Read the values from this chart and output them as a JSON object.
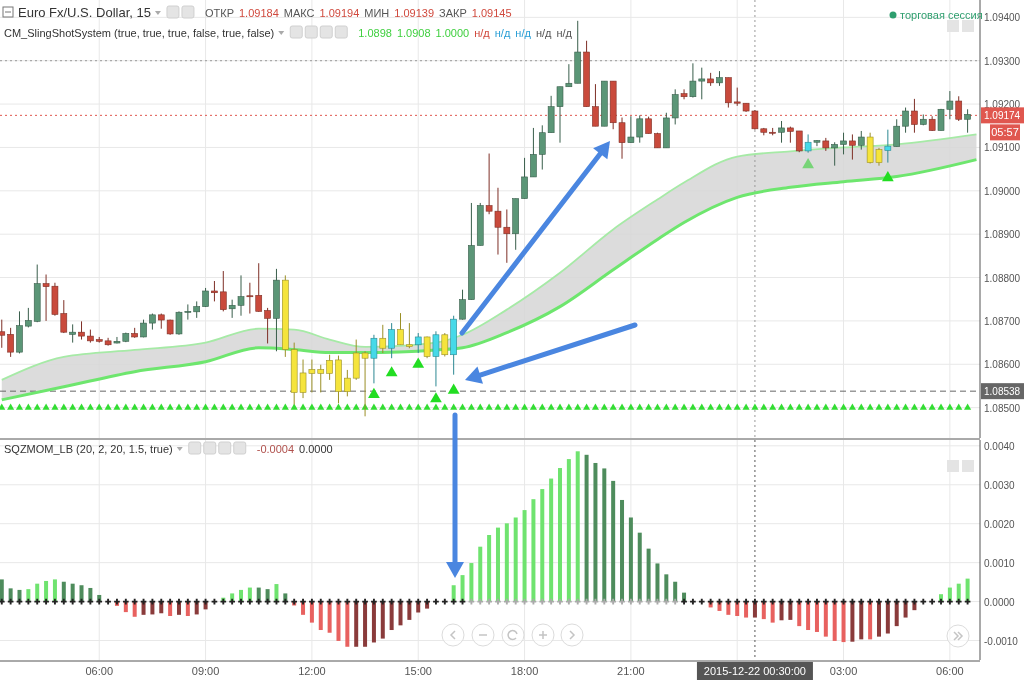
{
  "chart_data": [
    {
      "type": "candlestick",
      "title": "Euro Fx/U.S. Dollar, 15",
      "annotations": [
        "ОТКР",
        "1.09184",
        "МАКС",
        "1.09194",
        "МИН",
        "1.09139",
        "ЗАКР",
        "1.09145",
        "CM_SlingShotSystem (true, true, true, false, true, false)",
        "1.0898",
        "1.0908",
        "1.0000",
        "н/д",
        "н/д",
        "н/д",
        "н/д",
        "н/д",
        "торговая сессия",
        "05:57"
      ],
      "x": [
        "2015-12-21T03:15",
        "2015-12-21T03:30",
        "2015-12-21T03:45",
        "2015-12-21T04:00",
        "2015-12-21T04:15",
        "2015-12-21T04:30",
        "2015-12-21T04:45",
        "2015-12-21T05:00",
        "2015-12-21T05:15",
        "2015-12-21T05:30",
        "2015-12-21T05:45",
        "2015-12-21T06:00",
        "2015-12-21T06:15",
        "2015-12-21T06:30",
        "2015-12-21T06:45",
        "2015-12-21T07:00",
        "2015-12-21T07:15",
        "2015-12-21T07:30",
        "2015-12-21T07:45",
        "2015-12-21T08:00",
        "2015-12-21T08:15",
        "2015-12-21T08:30",
        "2015-12-21T08:45",
        "2015-12-21T09:00",
        "2015-12-21T09:15",
        "2015-12-21T09:30",
        "2015-12-21T09:45",
        "2015-12-21T10:00",
        "2015-12-21T10:15",
        "2015-12-21T10:30",
        "2015-12-21T10:45",
        "2015-12-21T11:00",
        "2015-12-21T11:15",
        "2015-12-21T11:30",
        "2015-12-21T11:45",
        "2015-12-21T12:00",
        "2015-12-21T12:15",
        "2015-12-21T12:30",
        "2015-12-21T12:45",
        "2015-12-21T13:00",
        "2015-12-21T13:15",
        "2015-12-21T13:30",
        "2015-12-21T13:45",
        "2015-12-21T14:00",
        "2015-12-21T14:15",
        "2015-12-21T14:30",
        "2015-12-21T14:45",
        "2015-12-21T15:00",
        "2015-12-21T15:15",
        "2015-12-21T15:30",
        "2015-12-21T15:45",
        "2015-12-21T16:00",
        "2015-12-21T16:15",
        "2015-12-21T16:30",
        "2015-12-21T16:45",
        "2015-12-21T17:00",
        "2015-12-21T17:15",
        "2015-12-21T17:30",
        "2015-12-21T17:45",
        "2015-12-21T18:00",
        "2015-12-21T18:15",
        "2015-12-21T18:30",
        "2015-12-21T18:45",
        "2015-12-21T19:00",
        "2015-12-21T19:15",
        "2015-12-21T19:30",
        "2015-12-21T19:45",
        "2015-12-21T20:00",
        "2015-12-21T20:15",
        "2015-12-21T20:30",
        "2015-12-21T20:45",
        "2015-12-21T21:00",
        "2015-12-21T21:15",
        "2015-12-21T21:30",
        "2015-12-21T21:45",
        "2015-12-21T22:00",
        "2015-12-21T22:15",
        "2015-12-21T22:30",
        "2015-12-21T22:45",
        "2015-12-21T23:00",
        "2015-12-21T23:15",
        "2015-12-21T23:30",
        "2015-12-21T23:45",
        "2015-12-22T00:00",
        "2015-12-22T00:15",
        "2015-12-22T00:30",
        "2015-12-22T00:45",
        "2015-12-22T01:00",
        "2015-12-22T01:15",
        "2015-12-22T01:30",
        "2015-12-22T01:45",
        "2015-12-22T02:00",
        "2015-12-22T02:15",
        "2015-12-22T02:30",
        "2015-12-22T02:45",
        "2015-12-22T03:00",
        "2015-12-22T03:15",
        "2015-12-22T03:30",
        "2015-12-22T03:45",
        "2015-12-22T04:00",
        "2015-12-22T04:15",
        "2015-12-22T04:30",
        "2015-12-22T04:45",
        "2015-12-22T05:00",
        "2015-12-22T05:15",
        "2015-12-22T05:30",
        "2015-12-22T05:45",
        "2015-12-22T06:00",
        "2015-12-22T06:15",
        "2015-12-22T06:30"
      ],
      "ohlc": [
        [
          1.08675,
          1.08703,
          1.08638,
          1.08667
        ],
        [
          1.08669,
          1.08684,
          1.08617,
          1.08628
        ],
        [
          1.08628,
          1.08722,
          1.08625,
          1.08689
        ],
        [
          1.08688,
          1.0873,
          1.08685,
          1.08701
        ],
        [
          1.08699,
          1.0883,
          1.08697,
          1.08786
        ],
        [
          1.08786,
          1.08807,
          1.087,
          1.08779
        ],
        [
          1.0878,
          1.08788,
          1.08712,
          1.08715
        ],
        [
          1.08717,
          1.08748,
          1.08672,
          1.08674
        ],
        [
          1.08669,
          1.08692,
          1.0865,
          1.08674
        ],
        [
          1.08674,
          1.08699,
          1.08657,
          1.08665
        ],
        [
          1.08665,
          1.0868,
          1.0865,
          1.08654
        ],
        [
          1.08657,
          1.08663,
          1.0865,
          1.08653
        ],
        [
          1.08654,
          1.08661,
          1.08643,
          1.08645
        ],
        [
          1.08649,
          1.08663,
          1.08648,
          1.08653
        ],
        [
          1.08653,
          1.08673,
          1.08651,
          1.08671
        ],
        [
          1.08671,
          1.08684,
          1.08661,
          1.08663
        ],
        [
          1.08663,
          1.08703,
          1.08662,
          1.08695
        ],
        [
          1.08695,
          1.08717,
          1.0868,
          1.08714
        ],
        [
          1.08714,
          1.08717,
          1.08682,
          1.08702
        ],
        [
          1.08702,
          1.08703,
          1.08668,
          1.0867
        ],
        [
          1.0867,
          1.08722,
          1.08668,
          1.0872
        ],
        [
          1.0872,
          1.08738,
          1.08703,
          1.08722
        ],
        [
          1.08721,
          1.08745,
          1.08707,
          1.08733
        ],
        [
          1.08733,
          1.08776,
          1.08732,
          1.08769
        ],
        [
          1.08769,
          1.08792,
          1.08745,
          1.08765
        ],
        [
          1.08767,
          1.08815,
          1.08722,
          1.08726
        ],
        [
          1.08728,
          1.08749,
          1.08707,
          1.08736
        ],
        [
          1.08736,
          1.08805,
          1.08712,
          1.08756
        ],
        [
          1.08758,
          1.08788,
          1.08717,
          1.08756
        ],
        [
          1.08759,
          1.08833,
          1.08721,
          1.08722
        ],
        [
          1.08724,
          1.0873,
          1.08648,
          1.08706
        ],
        [
          1.08706,
          1.0882,
          1.0863,
          1.08794
        ],
        [
          1.08794,
          1.08805,
          1.08617,
          1.08634
        ],
        [
          1.08634,
          1.0865,
          1.08507,
          1.08535
        ],
        [
          1.08535,
          1.08611,
          1.08522,
          1.0858
        ],
        [
          1.08579,
          1.08611,
          1.08535,
          1.08588
        ],
        [
          1.08588,
          1.08599,
          1.08535,
          1.08579
        ],
        [
          1.08579,
          1.08622,
          1.08564,
          1.08609
        ],
        [
          1.0861,
          1.0862,
          1.0851,
          1.08537
        ],
        [
          1.08537,
          1.08587,
          1.08526,
          1.08568
        ],
        [
          1.08568,
          1.08657,
          1.08564,
          1.08626
        ],
        [
          1.08614,
          1.0863,
          1.0848,
          1.08626
        ],
        [
          1.08614,
          1.08668,
          1.08556,
          1.0866
        ],
        [
          1.0866,
          1.08691,
          1.08626,
          1.08637
        ],
        [
          1.08637,
          1.08695,
          1.08614,
          1.0868
        ],
        [
          1.0868,
          1.08718,
          1.08645,
          1.08645
        ],
        [
          1.08645,
          1.08695,
          1.08637,
          1.08641
        ],
        [
          1.08645,
          1.08672,
          1.08626,
          1.08663
        ],
        [
          1.08663,
          1.08664,
          1.08614,
          1.08618
        ],
        [
          1.08618,
          1.08676,
          1.08549,
          1.08668
        ],
        [
          1.08668,
          1.08672,
          1.08618,
          1.08622
        ],
        [
          1.08622,
          1.08712,
          1.08576,
          1.08704
        ],
        [
          1.08704,
          1.08772,
          1.08703,
          1.08749
        ],
        [
          1.08749,
          1.08972,
          1.08749,
          1.08874
        ],
        [
          1.08874,
          1.08972,
          1.08874,
          1.08966
        ],
        [
          1.08966,
          1.09086,
          1.08946,
          1.08953
        ],
        [
          1.08953,
          1.09007,
          1.08853,
          1.08916
        ],
        [
          1.08916,
          1.08957,
          1.08834,
          1.08901
        ],
        [
          1.08901,
          1.08982,
          1.08864,
          1.08982
        ],
        [
          1.08982,
          1.09076,
          1.08982,
          1.09032
        ],
        [
          1.09032,
          1.09145,
          1.09032,
          1.09084
        ],
        [
          1.09084,
          1.09151,
          1.09049,
          1.09134
        ],
        [
          1.09134,
          1.09219,
          1.09134,
          1.09194
        ],
        [
          1.09194,
          1.0924,
          1.09111,
          1.0924
        ],
        [
          1.0924,
          1.09292,
          1.0924,
          1.09248
        ],
        [
          1.09248,
          1.09392,
          1.09248,
          1.0932
        ],
        [
          1.0932,
          1.09346,
          1.09194,
          1.09194
        ],
        [
          1.09194,
          1.09246,
          1.09149,
          1.09149
        ],
        [
          1.09149,
          1.09253,
          1.09149,
          1.09253
        ],
        [
          1.09253,
          1.09253,
          1.09142,
          1.09157
        ],
        [
          1.09157,
          1.09169,
          1.09074,
          1.09111
        ],
        [
          1.09111,
          1.09172,
          1.09111,
          1.09124
        ],
        [
          1.09124,
          1.09174,
          1.09111,
          1.09166
        ],
        [
          1.09166,
          1.09171,
          1.09132,
          1.09132
        ],
        [
          1.09132,
          1.09134,
          1.09099,
          1.09099
        ],
        [
          1.09099,
          1.0918,
          1.09099,
          1.09168
        ],
        [
          1.09168,
          1.09234,
          1.09153,
          1.09222
        ],
        [
          1.09224,
          1.09234,
          1.09211,
          1.09217
        ],
        [
          1.09217,
          1.09294,
          1.09215,
          1.09253
        ],
        [
          1.09253,
          1.09284,
          1.09211,
          1.09258
        ],
        [
          1.09258,
          1.09272,
          1.09242,
          1.09249
        ],
        [
          1.09249,
          1.09276,
          1.09242,
          1.09261
        ],
        [
          1.09261,
          1.09261,
          1.09192,
          1.09203
        ],
        [
          1.09205,
          1.09238,
          1.09196,
          1.09202
        ],
        [
          1.09202,
          1.09202,
          1.09182,
          1.09184
        ],
        [
          1.09184,
          1.09186,
          1.09141,
          1.09143
        ],
        [
          1.09143,
          1.09145,
          1.09128,
          1.09135
        ],
        [
          1.09135,
          1.09145,
          1.09128,
          1.09134
        ],
        [
          1.09135,
          1.09161,
          1.09111,
          1.09145
        ],
        [
          1.09145,
          1.09148,
          1.09111,
          1.09137
        ],
        [
          1.09138,
          1.09138,
          1.09089,
          1.09092
        ],
        [
          1.09092,
          1.0913,
          1.09088,
          1.09112
        ],
        [
          1.09112,
          1.09117,
          1.09103,
          1.09116
        ],
        [
          1.09115,
          1.09122,
          1.09092,
          1.09099
        ],
        [
          1.09099,
          1.09112,
          1.09058,
          1.09107
        ],
        [
          1.09107,
          1.09134,
          1.09084,
          1.09115
        ],
        [
          1.09115,
          1.0913,
          1.09072,
          1.09105
        ],
        [
          1.09105,
          1.09138,
          1.09095,
          1.09124
        ],
        [
          1.09124,
          1.09134,
          1.09063,
          1.09065
        ],
        [
          1.09095,
          1.09099,
          1.09058,
          1.09065
        ],
        [
          1.09093,
          1.09141,
          1.09065,
          1.09103
        ],
        [
          1.09102,
          1.09165,
          1.09102,
          1.09149
        ],
        [
          1.09149,
          1.09192,
          1.09134,
          1.09184
        ],
        [
          1.09184,
          1.09212,
          1.09134,
          1.09153
        ],
        [
          1.09153,
          1.09176,
          1.09151,
          1.09165
        ],
        [
          1.09165,
          1.09172,
          1.09138,
          1.09139
        ],
        [
          1.09139,
          1.09189,
          1.09139,
          1.09188
        ],
        [
          1.09188,
          1.0923,
          1.09165,
          1.09207
        ],
        [
          1.09207,
          1.09218,
          1.09161,
          1.09165
        ],
        [
          1.09165,
          1.09188,
          1.09134,
          1.09176
        ]
      ],
      "colors": [
        "#c94a3c",
        "#c94a3c",
        "#5b9677",
        "#5b9677",
        "#5b9677",
        "#c94a3c",
        "#c94a3c",
        "#c94a3c",
        "#5b9677",
        "#c94a3c",
        "#c94a3c",
        "#c94a3c",
        "#c94a3c",
        "#5b9677",
        "#5b9677",
        "#c94a3c",
        "#5b9677",
        "#5b9677",
        "#c94a3c",
        "#c94a3c",
        "#5b9677",
        "#5b9677",
        "#5b9677",
        "#5b9677",
        "#c94a3c",
        "#c94a3c",
        "#5b9677",
        "#5b9677",
        "#c94a3c",
        "#c94a3c",
        "#c94a3c",
        "#5b9677",
        "#f5e43c",
        "#f5e43c",
        "#f5e43c",
        "#f5e43c",
        "#f5e43c",
        "#f5e43c",
        "#f5e43c",
        "#f5e43c",
        "#f5e43c",
        "#f5e43c",
        "#46d9e8",
        "#f5e43c",
        "#46d9e8",
        "#f5e43c",
        "#f5e43c",
        "#46d9e8",
        "#f5e43c",
        "#46d9e8",
        "#f5e43c",
        "#46d9e8",
        "#5b9677",
        "#5b9677",
        "#5b9677",
        "#c94a3c",
        "#c94a3c",
        "#c94a3c",
        "#5b9677",
        "#5b9677",
        "#5b9677",
        "#5b9677",
        "#5b9677",
        "#5b9677",
        "#5b9677",
        "#5b9677",
        "#c94a3c",
        "#c94a3c",
        "#5b9677",
        "#c94a3c",
        "#c94a3c",
        "#5b9677",
        "#5b9677",
        "#c94a3c",
        "#c94a3c",
        "#5b9677",
        "#5b9677",
        "#c94a3c",
        "#5b9677",
        "#5b9677",
        "#c94a3c",
        "#5b9677",
        "#c94a3c",
        "#c94a3c",
        "#c94a3c",
        "#c94a3c",
        "#c94a3c",
        "#c94a3c",
        "#5b9677",
        "#c94a3c",
        "#c94a3c",
        "#46d9e8",
        "#5b9677",
        "#c94a3c",
        "#5b9677",
        "#5b9677",
        "#c94a3c",
        "#5b9677",
        "#f5e43c",
        "#f5e43c",
        "#46d9e8",
        "#5b9677",
        "#5b9677",
        "#c94a3c",
        "#5b9677",
        "#c94a3c",
        "#5b9677",
        "#5b9677",
        "#c94a3c",
        "#5b9677"
      ],
      "series": [
        {
          "type": "line",
          "color": "#a6eaa6",
          "x": [
            "2015-12-21T03:15",
            "2015-12-21T05:00",
            "2015-12-21T07:00",
            "2015-12-21T09:00",
            "2015-12-21T10:30",
            "2015-12-21T11:30",
            "2015-12-21T12:30",
            "2015-12-21T13:30",
            "2015-12-21T15:30",
            "2015-12-21T16:15",
            "2015-12-21T17:30",
            "2015-12-21T19:00",
            "2015-12-21T20:30",
            "2015-12-21T21:45",
            "2015-12-21T22:30",
            "2015-12-22T00:00",
            "2015-12-22T01:30",
            "2015-12-22T03:00",
            "2015-12-22T04:30",
            "2015-12-22T06:45"
          ],
          "values": [
            1.08564,
            1.08617,
            1.08633,
            1.0865,
            1.08682,
            1.0868,
            1.08657,
            1.0864,
            1.0865,
            1.08668,
            1.08726,
            1.08811,
            1.08911,
            1.0898,
            1.09019,
            1.09079,
            1.09091,
            1.091,
            1.09107,
            1.0913
          ]
        },
        {
          "type": "line",
          "color": "#6ee66e",
          "x": [
            "2015-12-21T03:15",
            "2015-12-21T05:00",
            "2015-12-21T07:00",
            "2015-12-21T09:00",
            "2015-12-21T10:30",
            "2015-12-21T11:30",
            "2015-12-21T12:30",
            "2015-12-21T13:30",
            "2015-12-21T15:30",
            "2015-12-21T16:15",
            "2015-12-21T17:30",
            "2015-12-21T19:00",
            "2015-12-21T20:30",
            "2015-12-21T21:45",
            "2015-12-21T22:30",
            "2015-12-22T00:00",
            "2015-12-22T01:30",
            "2015-12-22T03:00",
            "2015-12-22T04:30",
            "2015-12-22T06:45"
          ],
          "values": [
            1.08518,
            1.08548,
            1.08583,
            1.08606,
            1.08638,
            1.08634,
            1.08627,
            1.08627,
            1.08633,
            1.08638,
            1.08673,
            1.08733,
            1.08818,
            1.08888,
            1.08927,
            1.08985,
            1.09008,
            1.09021,
            1.09033,
            1.09072
          ],
          "lower": [
            1.08518,
            1.08548,
            1.08583,
            1.08606,
            1.08638,
            1.08634,
            1.08627,
            1.08627,
            1.08633,
            1.08638,
            1.08673,
            1.08733,
            1.08818,
            1.08888,
            1.08927,
            1.08985,
            1.09008,
            1.09021,
            1.09033,
            1.09072
          ],
          "upper": [
            1.08564,
            1.08617,
            1.08633,
            1.0865,
            1.08682,
            1.0868,
            1.08657,
            1.0864,
            1.0865,
            1.08668,
            1.08726,
            1.08811,
            1.08911,
            1.0898,
            1.09019,
            1.09079,
            1.09091,
            1.091,
            1.09107,
            1.0913
          ]
        },
        {
          "type": "scatter",
          "marker": "triangle",
          "color": "#33dd33",
          "values": [
            1.085,
            1.085,
            1.085,
            1.085,
            1.085,
            1.085,
            1.085,
            1.085,
            1.085,
            1.085,
            1.085,
            1.085,
            1.085,
            1.085,
            1.085,
            1.085,
            1.085,
            1.085,
            1.085,
            1.085,
            1.085,
            1.085,
            1.085,
            1.085,
            1.085,
            1.085,
            1.085,
            1.085,
            1.085,
            1.085,
            1.085,
            1.085,
            1.085,
            1.085,
            1.085,
            1.085,
            1.085,
            1.085,
            1.085,
            1.085,
            1.085,
            1.085,
            1.085,
            1.085,
            1.085,
            1.085,
            1.085,
            1.085,
            1.085,
            1.085,
            1.085,
            1.085,
            1.085,
            1.085,
            1.085,
            1.085,
            1.085,
            1.085,
            1.085,
            1.085,
            1.085,
            1.085,
            1.085,
            1.085,
            1.085,
            1.085,
            1.085,
            1.085,
            1.085,
            1.085,
            1.085,
            1.085,
            1.085,
            1.085,
            1.085,
            1.085,
            1.085,
            1.085,
            1.085,
            1.085,
            1.085,
            1.085,
            1.085,
            1.085,
            1.085,
            1.085,
            1.085,
            1.085,
            1.085,
            1.085,
            1.085,
            1.085,
            1.085,
            1.085,
            1.085,
            1.085,
            1.085,
            1.085,
            1.085,
            1.085,
            1.085,
            1.085,
            1.085,
            1.085,
            1.085,
            1.085,
            1.085,
            1.085,
            1.085,
            1.085
          ]
        },
        {
          "type": "scatter",
          "marker": "triangle",
          "x": [
            "2015-12-21T13:45",
            "2015-12-21T14:15",
            "2015-12-21T15:00",
            "2015-12-21T15:30",
            "2015-12-21T16:00",
            "2015-12-22T02:00",
            "2015-12-22T04:15"
          ],
          "values": [
            1.0853,
            1.0858,
            1.086,
            1.0852,
            1.0854,
            1.0906,
            1.0903
          ],
          "colors": [
            "#22dd22",
            "#22dd22",
            "#22dd22",
            "#22dd22",
            "#22dd22",
            "#77d477",
            "#22dd22"
          ]
        }
      ],
      "xlim": [
        "2015-12-21T03:12",
        "2015-12-22T06:51"
      ],
      "ylim": [
        1.0843,
        1.0944
      ],
      "xticks": [
        {
          "value": "2015-12-21T06:00",
          "label": null
        },
        {
          "value": "2015-12-21T09:00",
          "label": null
        },
        {
          "value": "2015-12-21T12:00",
          "label": null
        },
        {
          "value": "2015-12-21T15:00",
          "label": null
        },
        {
          "value": "2015-12-21T18:00",
          "label": null
        },
        {
          "value": "2015-12-21T21:00",
          "label": null
        },
        {
          "value": "2015-12-22T00:00",
          "label": null
        },
        {
          "value": "2015-12-22T03:00",
          "label": null
        },
        {
          "value": "2015-12-22T06:00",
          "label": null
        }
      ],
      "yticks": [
        {
          "value": 1.085,
          "label": "1.08500"
        },
        {
          "value": 1.086,
          "label": "1.08600"
        },
        {
          "value": 1.087,
          "label": "1.08700"
        },
        {
          "value": 1.088,
          "label": "1.08800"
        },
        {
          "value": 1.089,
          "label": "1.08900"
        },
        {
          "value": 1.09,
          "label": "1.09000"
        },
        {
          "value": 1.091,
          "label": "1.09100"
        },
        {
          "value": 1.092,
          "label": "1.09200"
        },
        {
          "value": 1.093,
          "label": "1.09300"
        },
        {
          "value": 1.094,
          "label": "1.09400"
        }
      ],
      "tick_labels": "y",
      "grid": true,
      "ref_lines": [
        {
          "axis": "y",
          "value": 1.09174,
          "label": "1.09174",
          "color": "#e0574f",
          "line_style": "dotted"
        },
        {
          "axis": "y",
          "value": 1.08538,
          "label": "1.08538",
          "color": "#666666",
          "line_style": "dashed"
        },
        {
          "axis": "y",
          "value": 1.093,
          "color": "#999999",
          "line_style": "dotted"
        },
        {
          "axis": "x",
          "value": "2015-12-22T00:30",
          "color": "#999999",
          "line_style": "dotted"
        }
      ]
    },
    {
      "type": "bar",
      "title": "SQZMOM_LB (20, 2, 20, 1.5, true)",
      "annotations": [
        "-0.0004",
        "0.0000"
      ],
      "x": [
        "2015-12-21T03:15",
        "2015-12-21T03:30",
        "2015-12-21T03:45",
        "2015-12-21T04:00",
        "2015-12-21T04:15",
        "2015-12-21T04:30",
        "2015-12-21T04:45",
        "2015-12-21T05:00",
        "2015-12-21T05:15",
        "2015-12-21T05:30",
        "2015-12-21T05:45",
        "2015-12-21T06:00",
        "2015-12-21T06:15",
        "2015-12-21T06:30",
        "2015-12-21T06:45",
        "2015-12-21T07:00",
        "2015-12-21T07:15",
        "2015-12-21T07:30",
        "2015-12-21T07:45",
        "2015-12-21T08:00",
        "2015-12-21T08:15",
        "2015-12-21T08:30",
        "2015-12-21T08:45",
        "2015-12-21T09:00",
        "2015-12-21T09:15",
        "2015-12-21T09:30",
        "2015-12-21T09:45",
        "2015-12-21T10:00",
        "2015-12-21T10:15",
        "2015-12-21T10:30",
        "2015-12-21T10:45",
        "2015-12-21T11:00",
        "2015-12-21T11:15",
        "2015-12-21T11:30",
        "2015-12-21T11:45",
        "2015-12-21T12:00",
        "2015-12-21T12:15",
        "2015-12-21T12:30",
        "2015-12-21T12:45",
        "2015-12-21T13:00",
        "2015-12-21T13:15",
        "2015-12-21T13:30",
        "2015-12-21T13:45",
        "2015-12-21T14:00",
        "2015-12-21T14:15",
        "2015-12-21T14:30",
        "2015-12-21T14:45",
        "2015-12-21T15:00",
        "2015-12-21T15:15",
        "2015-12-21T15:30",
        "2015-12-21T15:45",
        "2015-12-21T16:00",
        "2015-12-21T16:15",
        "2015-12-21T16:30",
        "2015-12-21T16:45",
        "2015-12-21T17:00",
        "2015-12-21T17:15",
        "2015-12-21T17:30",
        "2015-12-21T17:45",
        "2015-12-21T18:00",
        "2015-12-21T18:15",
        "2015-12-21T18:30",
        "2015-12-21T18:45",
        "2015-12-21T19:00",
        "2015-12-21T19:15",
        "2015-12-21T19:30",
        "2015-12-21T19:45",
        "2015-12-21T20:00",
        "2015-12-21T20:15",
        "2015-12-21T20:30",
        "2015-12-21T20:45",
        "2015-12-21T21:00",
        "2015-12-21T21:15",
        "2015-12-21T21:30",
        "2015-12-21T21:45",
        "2015-12-21T22:00",
        "2015-12-21T22:15",
        "2015-12-21T22:30",
        "2015-12-21T22:45",
        "2015-12-21T23:00",
        "2015-12-21T23:15",
        "2015-12-21T23:30",
        "2015-12-21T23:45",
        "2015-12-22T00:00",
        "2015-12-22T00:15",
        "2015-12-22T00:30",
        "2015-12-22T00:45",
        "2015-12-22T01:00",
        "2015-12-22T01:15",
        "2015-12-22T01:30",
        "2015-12-22T01:45",
        "2015-12-22T02:00",
        "2015-12-22T02:15",
        "2015-12-22T02:30",
        "2015-12-22T02:45",
        "2015-12-22T03:00",
        "2015-12-22T03:15",
        "2015-12-22T03:30",
        "2015-12-22T03:45",
        "2015-12-22T04:00",
        "2015-12-22T04:15",
        "2015-12-22T04:30",
        "2015-12-22T04:45",
        "2015-12-22T05:00",
        "2015-12-22T05:15",
        "2015-12-22T05:30",
        "2015-12-22T05:45",
        "2015-12-22T06:00",
        "2015-12-22T06:15",
        "2015-12-22T06:30"
      ],
      "series": [
        {
          "type": "bar",
          "values": [
            0.00057,
            0.00034,
            0.0003,
            0.00032,
            0.00046,
            0.00053,
            0.00057,
            0.00051,
            0.00046,
            0.00042,
            0.00035,
            0.00017,
            0,
            -0.00011,
            -0.00027,
            -0.00039,
            -0.00034,
            -0.00033,
            -0.0003,
            -0.00037,
            -0.00034,
            -0.00037,
            -0.00033,
            -0.0002,
            0,
            0.0001,
            0.00021,
            0.0003,
            0.00036,
            0.00036,
            0.00032,
            0.00045,
            0.00021,
            -0.0001,
            -0.00034,
            -0.00054,
            -0.00073,
            -0.0008,
            -0.00101,
            -0.00116,
            -0.00116,
            -0.00116,
            -0.00105,
            -0.00095,
            -0.00073,
            -0.00061,
            -0.00047,
            -0.00028,
            -0.00018,
            0,
            0,
            0.00042,
            0.00068,
            0.00099,
            0.00141,
            0.00171,
            0.0019,
            0.00201,
            0.00216,
            0.00235,
            0.00263,
            0.00289,
            0.00316,
            0.00343,
            0.00366,
            0.00386,
            0.00377,
            0.00356,
            0.00342,
            0.0031,
            0.00261,
            0.00216,
            0.00177,
            0.00136,
            0.00098,
            0.0007,
            0.00051,
            0.00023,
            0,
            0,
            -0.00015,
            -0.00024,
            -0.00034,
            -0.00037,
            -0.00041,
            -0.00041,
            -0.00045,
            -0.00054,
            -0.00048,
            -0.00047,
            -0.00063,
            -0.00073,
            -0.00078,
            -0.0009,
            -0.00101,
            -0.00104,
            -0.00103,
            -0.00097,
            -0.00097,
            -0.0009,
            -0.00082,
            -0.00063,
            -0.00041,
            -0.00022,
            0,
            0,
            0.00019,
            0.00036,
            0.00046,
            0.00059
          ],
          "colors": [
            "#4e8c5c",
            "#4e8c5c",
            "#4e8c5c",
            "#6fe36f",
            "#6fe36f",
            "#6fe36f",
            "#6fe36f",
            "#4e8c5c",
            "#4e8c5c",
            "#4e8c5c",
            "#4e8c5c",
            "#4e8c5c",
            "#4e8c5c",
            "#e8615f",
            "#e8615f",
            "#e8615f",
            "#8a3b3b",
            "#8a3b3b",
            "#8a3b3b",
            "#e8615f",
            "#8a3b3b",
            "#e8615f",
            "#8a3b3b",
            "#8a3b3b",
            "#8a3b3b",
            "#6fe36f",
            "#6fe36f",
            "#6fe36f",
            "#6fe36f",
            "#4e8c5c",
            "#4e8c5c",
            "#6fe36f",
            "#4e8c5c",
            "#e8615f",
            "#e8615f",
            "#e8615f",
            "#e8615f",
            "#e8615f",
            "#e8615f",
            "#e8615f",
            "#8a3b3b",
            "#8a3b3b",
            "#8a3b3b",
            "#8a3b3b",
            "#8a3b3b",
            "#8a3b3b",
            "#8a3b3b",
            "#8a3b3b",
            "#8a3b3b",
            "#8a3b3b",
            "#8a3b3b",
            "#6fe36f",
            "#6fe36f",
            "#6fe36f",
            "#6fe36f",
            "#6fe36f",
            "#6fe36f",
            "#6fe36f",
            "#6fe36f",
            "#6fe36f",
            "#6fe36f",
            "#6fe36f",
            "#6fe36f",
            "#6fe36f",
            "#6fe36f",
            "#6fe36f",
            "#4e8c5c",
            "#4e8c5c",
            "#4e8c5c",
            "#4e8c5c",
            "#4e8c5c",
            "#4e8c5c",
            "#4e8c5c",
            "#4e8c5c",
            "#4e8c5c",
            "#4e8c5c",
            "#4e8c5c",
            "#4e8c5c",
            "#4e8c5c",
            "#4e8c5c",
            "#e8615f",
            "#e8615f",
            "#e8615f",
            "#e8615f",
            "#e8615f",
            "#8a3b3b",
            "#e8615f",
            "#e8615f",
            "#8a3b3b",
            "#8a3b3b",
            "#e8615f",
            "#e8615f",
            "#e8615f",
            "#e8615f",
            "#e8615f",
            "#e8615f",
            "#8a3b3b",
            "#8a3b3b",
            "#e8615f",
            "#8a3b3b",
            "#8a3b3b",
            "#8a3b3b",
            "#8a3b3b",
            "#8a3b3b",
            "#8a3b3b",
            "#8a3b3b",
            "#6fe36f",
            "#6fe36f",
            "#6fe36f",
            "#6fe36f"
          ]
        },
        {
          "type": "scatter",
          "marker": "cross",
          "values": [
            0,
            0,
            0,
            0,
            0,
            0,
            0,
            0,
            0,
            0,
            0,
            0,
            0,
            0,
            0,
            0,
            0,
            0,
            0,
            0,
            0,
            0,
            0,
            0,
            0,
            0,
            0,
            0,
            0,
            0,
            0,
            0,
            0,
            0,
            0,
            0,
            0,
            0,
            0,
            0,
            0,
            0,
            0,
            0,
            0,
            0,
            0,
            0,
            0,
            0,
            0,
            0,
            0,
            0,
            0,
            0,
            0,
            0,
            0,
            0,
            0,
            0,
            0,
            0,
            0,
            0,
            0,
            0,
            0,
            0,
            0,
            0,
            0,
            0,
            0,
            0,
            0,
            0,
            0,
            0,
            0,
            0,
            0,
            0,
            0,
            0,
            0,
            0,
            0,
            0,
            0,
            0,
            0,
            0,
            0,
            0,
            0,
            0,
            0,
            0,
            0,
            0,
            0,
            0,
            0,
            0,
            0,
            0,
            0,
            0
          ],
          "colors": [
            "#222222",
            "#222222",
            "#222222",
            "#222222",
            "#222222",
            "#222222",
            "#222222",
            "#222222",
            "#222222",
            "#222222",
            "#222222",
            "#222222",
            "#222222",
            "#222222",
            "#222222",
            "#222222",
            "#222222",
            "#222222",
            "#222222",
            "#222222",
            "#222222",
            "#222222",
            "#222222",
            "#222222",
            "#222222",
            "#222222",
            "#222222",
            "#222222",
            "#222222",
            "#222222",
            "#222222",
            "#222222",
            "#222222",
            "#222222",
            "#222222",
            "#222222",
            "#222222",
            "#222222",
            "#222222",
            "#222222",
            "#222222",
            "#222222",
            "#222222",
            "#222222",
            "#222222",
            "#222222",
            "#222222",
            "#222222",
            "#222222",
            "#222222",
            "#222222",
            "#222222",
            "#222222",
            "#aaaaaa",
            "#aaaaaa",
            "#aaaaaa",
            "#aaaaaa",
            "#aaaaaa",
            "#aaaaaa",
            "#aaaaaa",
            "#aaaaaa",
            "#aaaaaa",
            "#aaaaaa",
            "#aaaaaa",
            "#aaaaaa",
            "#aaaaaa",
            "#aaaaaa",
            "#aaaaaa",
            "#aaaaaa",
            "#aaaaaa",
            "#aaaaaa",
            "#aaaaaa",
            "#aaaaaa",
            "#aaaaaa",
            "#aaaaaa",
            "#aaaaaa",
            "#aaaaaa",
            "#222222",
            "#222222",
            "#222222",
            "#222222",
            "#222222",
            "#222222",
            "#222222",
            "#222222",
            "#222222",
            "#222222",
            "#222222",
            "#222222",
            "#222222",
            "#222222",
            "#222222",
            "#222222",
            "#222222",
            "#222222",
            "#222222",
            "#222222",
            "#222222",
            "#222222",
            "#222222",
            "#222222",
            "#222222",
            "#222222",
            "#222222",
            "#222222",
            "#222222",
            "#222222",
            "#222222",
            "#222222",
            "#222222"
          ]
        }
      ],
      "xlim": [
        "2015-12-21T03:12",
        "2015-12-22T06:51"
      ],
      "ylim": [
        -0.0015,
        0.00415
      ],
      "xticks": [
        {
          "value": "2015-12-21T06:00",
          "label": "06:00"
        },
        {
          "value": "2015-12-21T09:00",
          "label": "09:00"
        },
        {
          "value": "2015-12-21T12:00",
          "label": "12:00"
        },
        {
          "value": "2015-12-21T15:00",
          "label": "15:00"
        },
        {
          "value": "2015-12-21T18:00",
          "label": "18:00"
        },
        {
          "value": "2015-12-21T21:00",
          "label": "21:00"
        },
        {
          "value": "2015-12-22T00:00",
          "label": null
        },
        {
          "value": "2015-12-22T03:00",
          "label": "03:00"
        },
        {
          "value": "2015-12-22T06:00",
          "label": "06:00"
        }
      ],
      "yticks": [
        {
          "value": -0.001,
          "label": "-0.0010"
        },
        {
          "value": 0,
          "label": "0.0000"
        },
        {
          "value": 0.001,
          "label": "0.0010"
        },
        {
          "value": 0.002,
          "label": "0.0020"
        },
        {
          "value": 0.003,
          "label": "0.0030"
        },
        {
          "value": 0.004,
          "label": "0.0040"
        }
      ],
      "grid": true,
      "ref_lines": [
        {
          "axis": "x",
          "value": "2015-12-22T00:30",
          "label": "2015-12-22 00:30:00",
          "color": "#555555",
          "line_style": "dotted"
        }
      ]
    }
  ]
}
